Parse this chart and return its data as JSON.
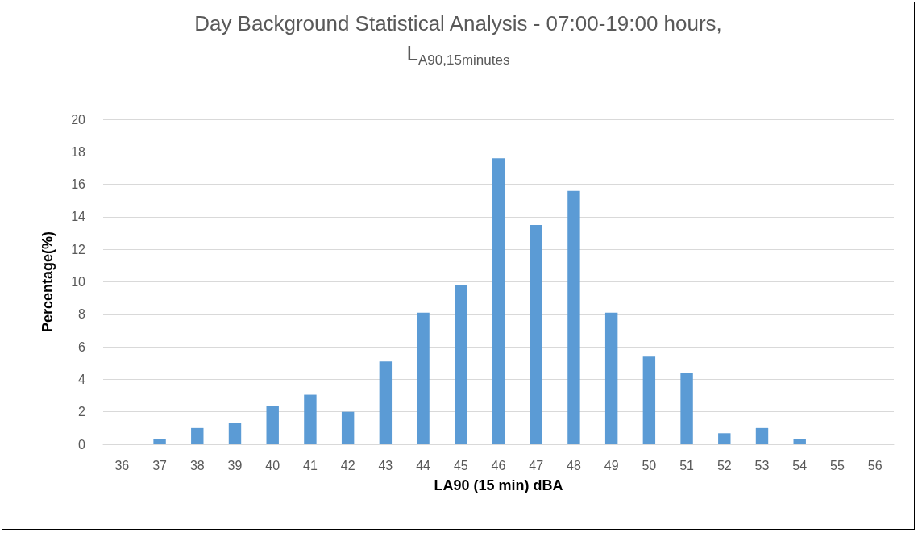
{
  "chart_data": {
    "type": "bar",
    "title": "Day Background Statistical Analysis - 07:00-19:00 hours,",
    "subtitle": "L$_{A90,15minutes}$",
    "xlabel": "LA90 (15 min) dBA",
    "ylabel": "Percentage(%)",
    "categories": [
      "36",
      "37",
      "38",
      "39",
      "40",
      "41",
      "42",
      "43",
      "44",
      "45",
      "46",
      "47",
      "48",
      "49",
      "50",
      "51",
      "52",
      "53",
      "54",
      "55",
      "56"
    ],
    "values": [
      0,
      0.34,
      1.0,
      1.3,
      2.35,
      3.05,
      2.0,
      5.1,
      8.1,
      9.8,
      17.6,
      13.5,
      15.6,
      8.1,
      5.4,
      4.4,
      0.68,
      1.0,
      0.34,
      0,
      0
    ],
    "color": "#5b9bd5",
    "ylim": [
      0,
      20
    ],
    "yticks": [
      0,
      2,
      4,
      6,
      8,
      10,
      12,
      14,
      16,
      18,
      20
    ],
    "grid": "y"
  }
}
